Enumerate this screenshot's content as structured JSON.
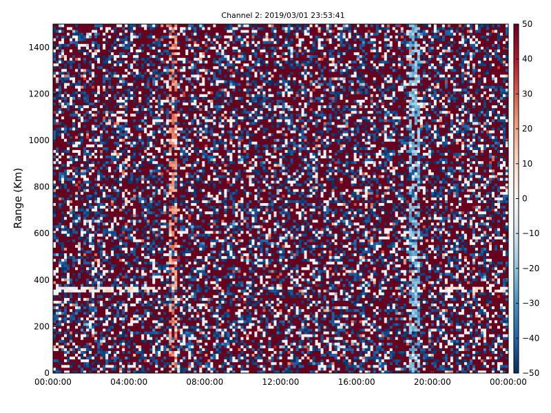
{
  "chart_data": {
    "type": "heatmap",
    "title": "Channel 2: 2019/03/01 23:53:41",
    "ylabel": "Range (Km)",
    "xlabel": "",
    "x_ticks": [
      "00:00:00",
      "04:00:00",
      "08:00:00",
      "12:00:00",
      "16:00:00",
      "20:00:00",
      "00:00:00"
    ],
    "x_range_hours": [
      0,
      24
    ],
    "y_ticks": [
      0,
      200,
      400,
      600,
      800,
      1000,
      1200,
      1400
    ],
    "ylim": [
      0,
      1500
    ],
    "colorbar": {
      "ticks": [
        50,
        40,
        30,
        20,
        10,
        0,
        -10,
        -20,
        -30,
        -40,
        -50
      ],
      "tick_labels": [
        "50",
        "40",
        "30",
        "20",
        "10",
        "0",
        "−10",
        "−20",
        "−30",
        "−40",
        "−50"
      ],
      "range": [
        -50,
        50
      ],
      "colormap": "RdBu_r",
      "colors": [
        "#053061",
        "#2166ac",
        "#4393c3",
        "#92c5de",
        "#d1e5f0",
        "#f7f7f7",
        "#fddbc7",
        "#f4a582",
        "#d6604d",
        "#b2182b",
        "#67001f"
      ]
    },
    "features": {
      "white_band_range_km": 360,
      "white_band_hours": [
        [
          0,
          5.7
        ],
        [
          20.2,
          24
        ]
      ],
      "vertical_red_streak_hour": 6.3,
      "vertical_blue_streak_hour": 19.0,
      "grid": false
    }
  }
}
